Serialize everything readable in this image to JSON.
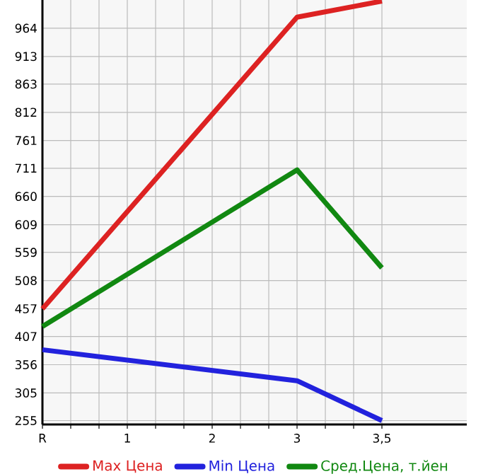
{
  "chart_data": {
    "type": "line",
    "categories": [
      "R",
      "1",
      "2",
      "3",
      "3,5"
    ],
    "series": [
      {
        "name": "Max Цена",
        "color": "#dd2222",
        "values": [
          457,
          null,
          null,
          984,
          1013
        ]
      },
      {
        "name": "Min Цена",
        "color": "#2222dd",
        "values": [
          383,
          null,
          null,
          327,
          255
        ]
      },
      {
        "name": "Сред.Цена, т.йен",
        "color": "#118811",
        "values": [
          425,
          null,
          null,
          708,
          531
        ]
      }
    ],
    "ylim": [
      248,
      1015
    ],
    "yticks": [
      255,
      305,
      356,
      407,
      457,
      508,
      559,
      609,
      660,
      711,
      761,
      812,
      863,
      913,
      964
    ],
    "grid": true,
    "legend": "bottom",
    "marker": "none",
    "line_style": "solid"
  }
}
